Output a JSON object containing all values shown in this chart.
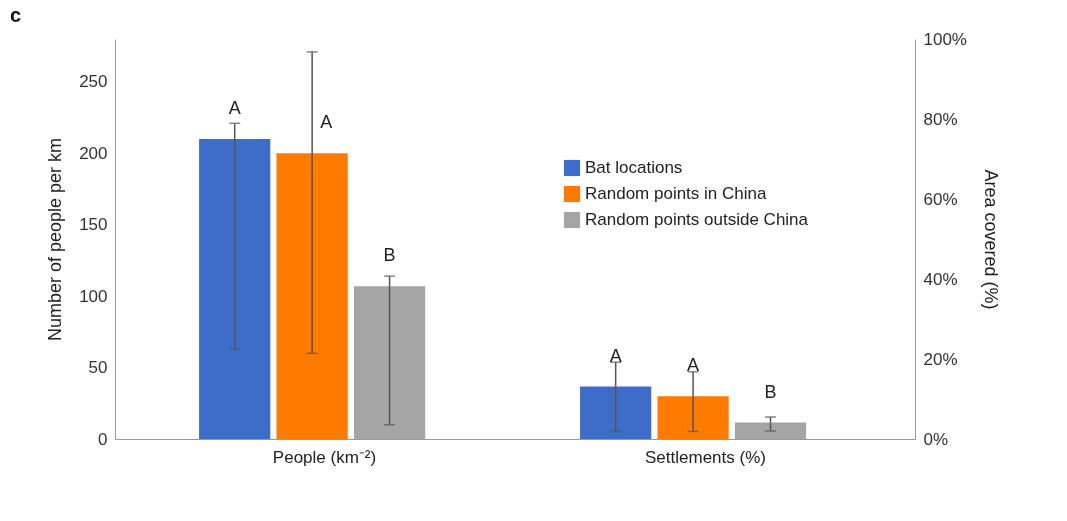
{
  "chart_data": {
    "type": "bar",
    "categories": [
      "People (km⁻²)",
      "Settlements (%)"
    ],
    "ylabel": "Number of people per km",
    "y2label": "Area covered (%)",
    "ylim": [
      0,
      280
    ],
    "yticks": [
      0,
      50,
      100,
      150,
      200,
      250
    ],
    "y2lim": [
      0,
      100
    ],
    "y2ticks": [
      {
        "value": 0,
        "label": "0%"
      },
      {
        "value": 20,
        "label": "20%"
      },
      {
        "value": 40,
        "label": "40%"
      },
      {
        "value": 60,
        "label": "60%"
      },
      {
        "value": 80,
        "label": "80%"
      },
      {
        "value": 100,
        "label": "100%"
      }
    ],
    "grid": false,
    "legend": "right",
    "annotations": [
      "c"
    ],
    "series": [
      {
        "name": "Bat locations",
        "color": "#3d6cc9",
        "values": [
          210,
          null
        ],
        "errors": [
          [
            63,
            221
          ],
          null
        ],
        "value_labels": [
          "A",
          null
        ]
      },
      {
        "name": "Random points in China",
        "color": "#ff7b00",
        "values": [
          200,
          null
        ],
        "errors": [
          [
            60,
            271
          ],
          null
        ],
        "value_labels": [
          "A",
          null
        ]
      },
      {
        "name": "Random points outside China",
        "color": "#a5a5a5",
        "values": [
          107,
          null
        ],
        "errors": [
          [
            10,
            114
          ],
          null
        ],
        "value_labels": [
          "B",
          null
        ]
      },
      {
        "color": "#3d6cc9",
        "axis": "y2",
        "values": [
          null,
          13.1
        ],
        "errors": [
          null,
          [
            1.9,
            19.2
          ]
        ],
        "value_labels": [
          null,
          "A"
        ]
      },
      {
        "color": "#ff7b00",
        "axis": "y2",
        "values": [
          null,
          10.7
        ],
        "errors": [
          null,
          [
            1.9,
            16.8
          ]
        ],
        "value_labels": [
          null,
          "A"
        ]
      },
      {
        "color": "#a5a5a5",
        "axis": "y2",
        "values": [
          null,
          4.1
        ],
        "errors": [
          null,
          [
            2,
            5.5
          ]
        ],
        "value_labels": [
          null,
          "B"
        ]
      }
    ]
  }
}
